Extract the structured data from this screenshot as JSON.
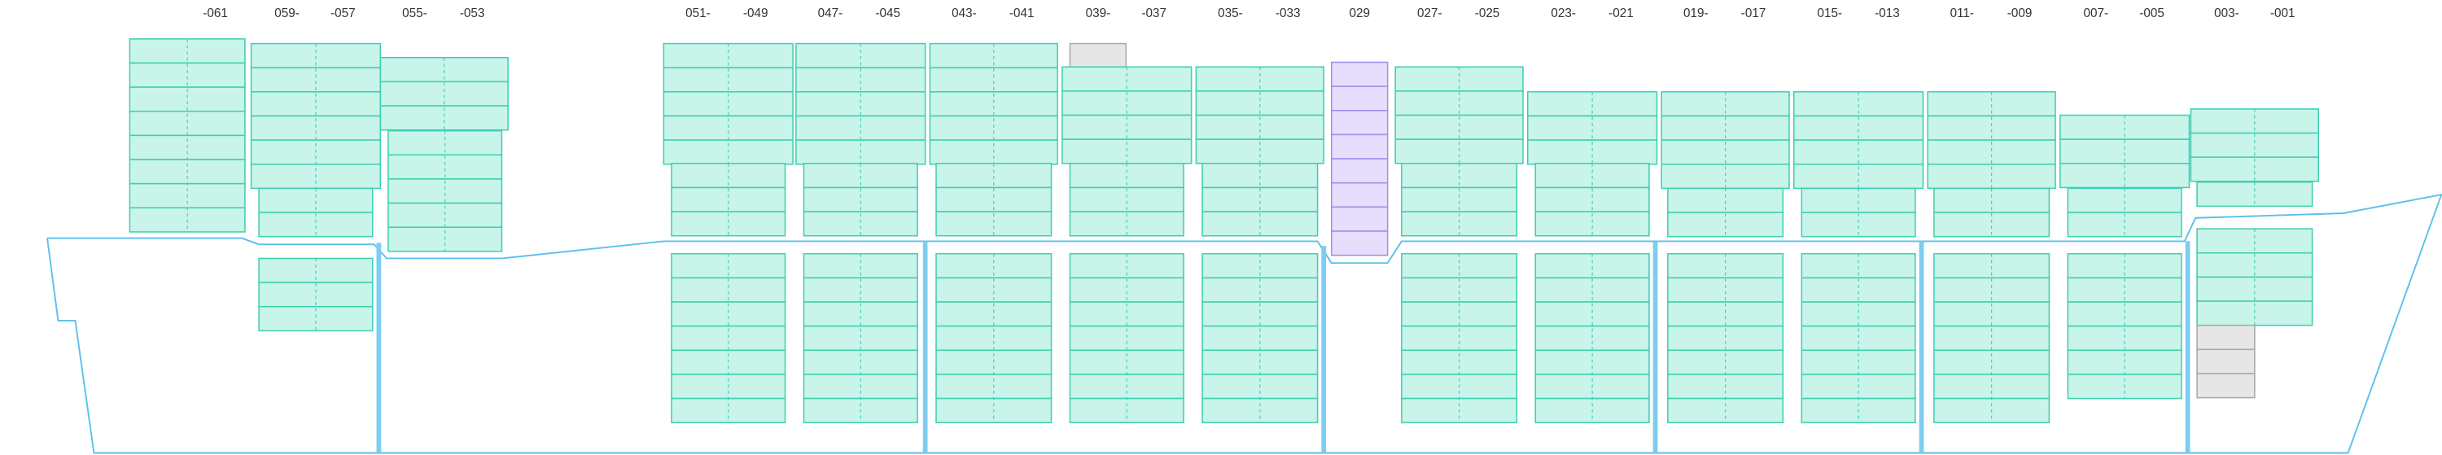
{
  "bay_labels": [
    "-061",
    "059-",
    "-057",
    "055-",
    "-053",
    "051-",
    "-049",
    "047-",
    "-045",
    "043-",
    "-041",
    "039-",
    "-037",
    "035-",
    "-033",
    "029",
    "027-",
    "-025",
    "023-",
    "-021",
    "019-",
    "-017",
    "015-",
    "-013",
    "011-",
    "-009",
    "007-",
    "-005",
    "003-",
    "-001"
  ]
}
